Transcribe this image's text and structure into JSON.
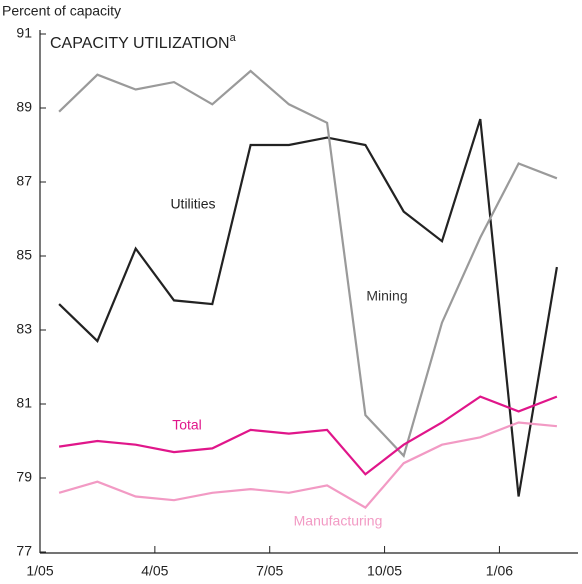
{
  "chart_data": {
    "type": "line",
    "title": "CAPACITY UTILIZATION",
    "title_note": "a",
    "y_axis_label": "Percent of capacity",
    "categories": [
      "1/05",
      null,
      null,
      "4/05",
      null,
      null,
      "7/05",
      null,
      null,
      "10/05",
      null,
      null,
      "1/06",
      null
    ],
    "series": [
      {
        "name": "Utilities",
        "color": "#222222",
        "values": [
          83.7,
          82.7,
          85.2,
          83.8,
          83.7,
          88.0,
          88.0,
          88.2,
          88.0,
          86.2,
          85.4,
          88.7,
          78.5,
          84.7
        ]
      },
      {
        "name": "Mining",
        "color": "#9a9a9a",
        "values": [
          88.9,
          89.9,
          89.5,
          89.7,
          89.1,
          90.0,
          89.1,
          88.6,
          80.7,
          79.6,
          83.2,
          85.5,
          87.5,
          87.1
        ]
      },
      {
        "name": "Total",
        "color": "#e0168a",
        "values": [
          79.85,
          80.0,
          79.9,
          79.7,
          79.8,
          80.3,
          80.2,
          80.3,
          79.1,
          79.9,
          80.5,
          81.2,
          80.8,
          81.2
        ]
      },
      {
        "name": "Manufacturing",
        "color": "#f29ac4",
        "values": [
          78.6,
          78.9,
          78.5,
          78.4,
          78.6,
          78.7,
          78.6,
          78.8,
          78.2,
          79.4,
          79.9,
          80.1,
          80.5,
          80.4
        ]
      }
    ],
    "ylim": [
      77,
      91
    ],
    "yticks": [
      77,
      79,
      81,
      83,
      85,
      87,
      89,
      91
    ],
    "grid": false
  }
}
